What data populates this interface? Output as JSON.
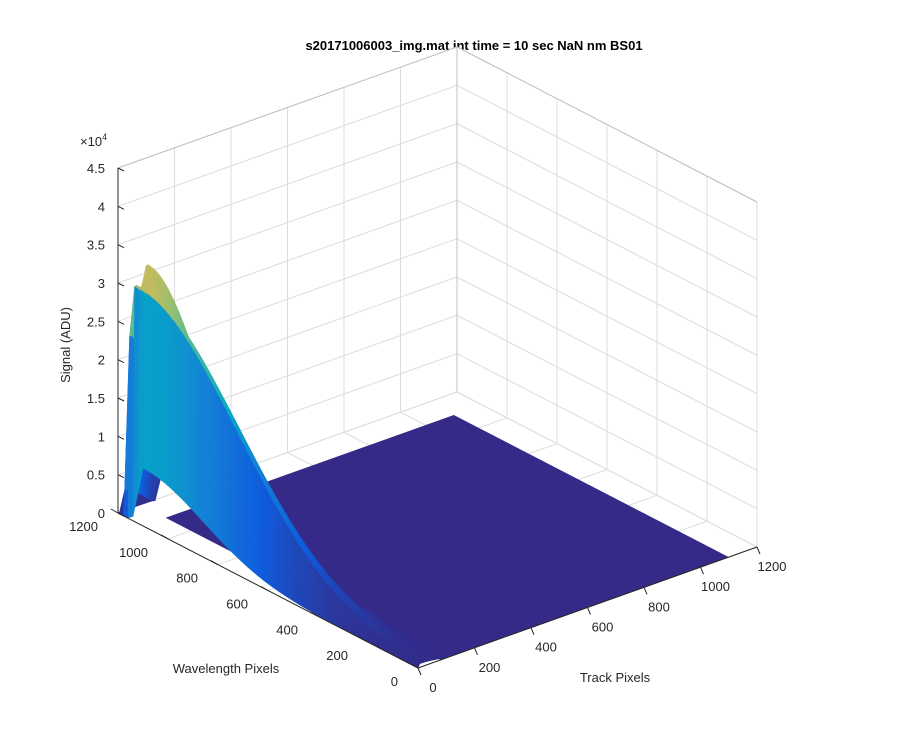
{
  "chart_data": {
    "type": "surface",
    "title": "s20171006003_img.mat int time = 10 sec  NaN nm BS01",
    "xlabel": "Track Pixels",
    "ylabel": "Wavelength Pixels",
    "zlabel": "Signal (ADU)",
    "z_exponent_label": "×10",
    "z_exponent_power": "4",
    "xlim": [
      0,
      1200
    ],
    "ylim": [
      0,
      1200
    ],
    "zlim": [
      0,
      45000
    ],
    "x_ticks": [
      "0",
      "200",
      "400",
      "600",
      "800",
      "1000",
      "1200"
    ],
    "y_ticks": [
      "0",
      "200",
      "400",
      "600",
      "800",
      "1000",
      "1200"
    ],
    "z_ticks": [
      "0",
      "0.5",
      "1",
      "1.5",
      "2",
      "2.5",
      "3",
      "3.5",
      "4",
      "4.5"
    ],
    "grid": true,
    "colormap": "parula",
    "colors": {
      "low": "#352a87",
      "mid_low": "#0f5cdd",
      "mid": "#06a7c6",
      "mid_high": "#75ba82",
      "high": "#f9fb0e"
    },
    "surface_description_points": {
      "note_track_range": [
        0,
        100
      ],
      "baseline_signal": 0,
      "ridges": [
        {
          "track": 15,
          "peak_wavelength": 1100,
          "peak_signal": 36000
        },
        {
          "track": 30,
          "peak_wavelength": 1000,
          "peak_signal": 20000
        },
        {
          "track": 45,
          "peak_wavelength": 900,
          "peak_signal": 13000
        },
        {
          "track": 60,
          "peak_wavelength": 800,
          "peak_signal": 8500
        }
      ]
    }
  }
}
